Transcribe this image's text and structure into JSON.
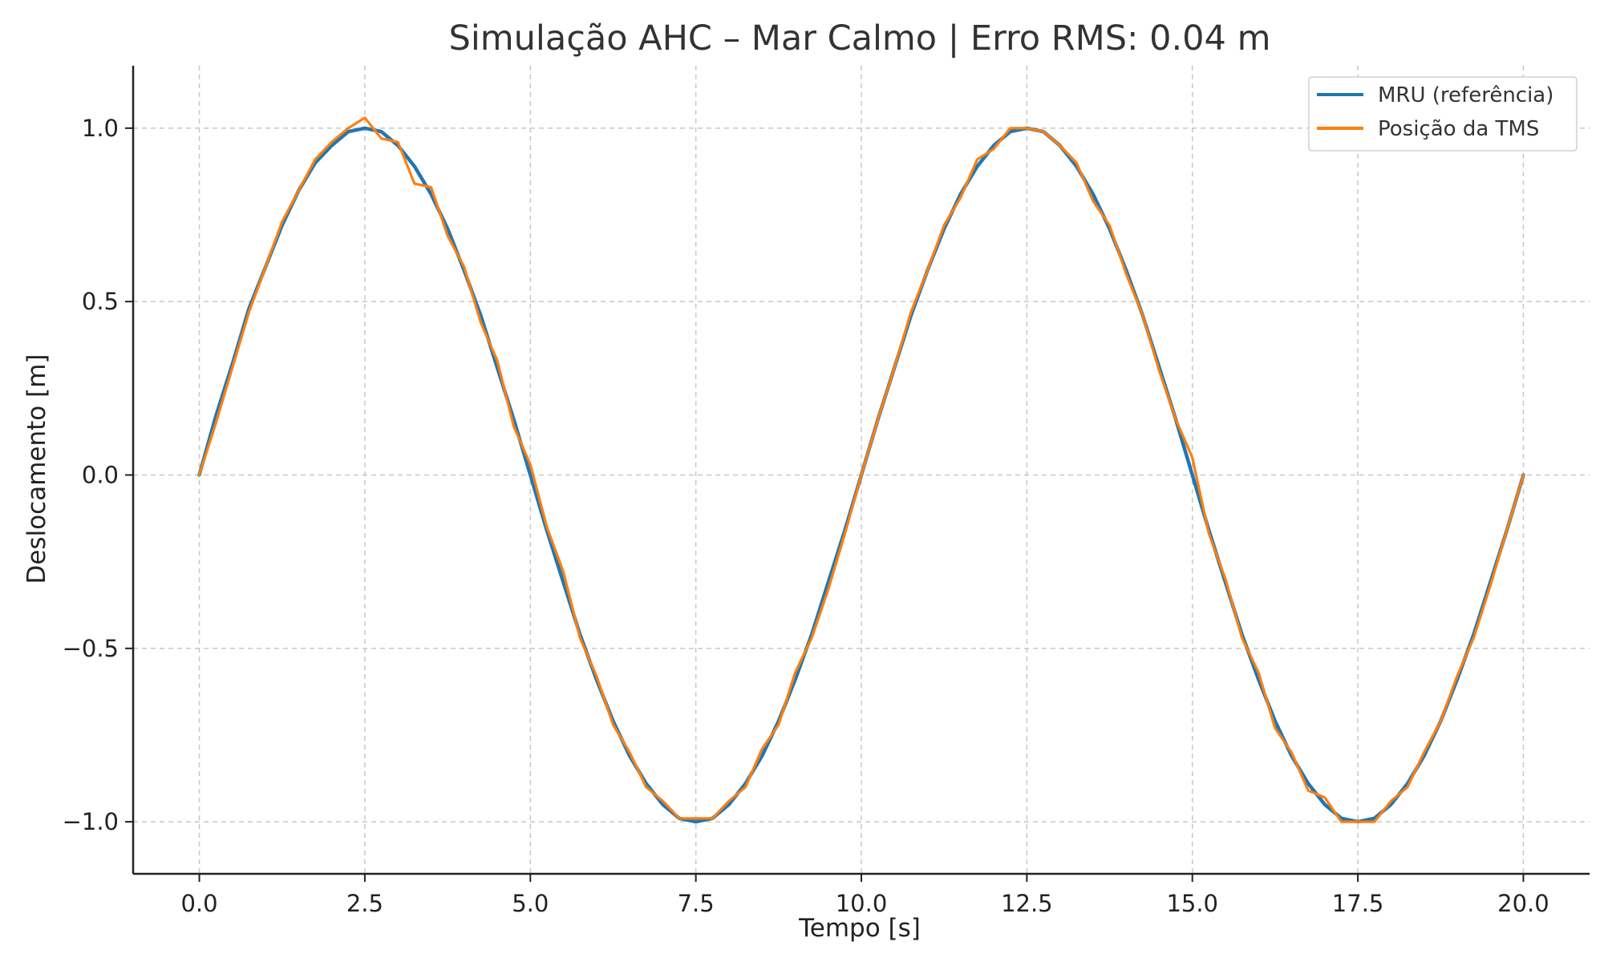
{
  "chart_data": {
    "type": "line",
    "title": "Simulação AHC – Mar Calmo | Erro RMS: 0.04 m",
    "xlabel": "Tempo [s]",
    "ylabel": "Deslocamento [m]",
    "xlim": [
      -1,
      21
    ],
    "ylim": [
      -1.15,
      1.18
    ],
    "x_ticks": [
      0,
      2.5,
      5,
      7.5,
      10,
      12.5,
      15,
      17.5,
      20
    ],
    "x_tick_labels": [
      "0.0",
      "2.5",
      "5.0",
      "7.5",
      "10.0",
      "12.5",
      "15.0",
      "17.5",
      "20.0"
    ],
    "y_ticks": [
      -1.0,
      -0.5,
      0.0,
      0.5,
      1.0
    ],
    "y_tick_labels": [
      "−1.0",
      "−0.5",
      "0.0",
      "0.5",
      "1.0"
    ],
    "grid": true,
    "legend_position": "top-right",
    "series": [
      {
        "name": "MRU (referência)",
        "color": "#1f77b4",
        "x": [
          0,
          0.25,
          0.5,
          0.75,
          1,
          1.25,
          1.5,
          1.75,
          2,
          2.25,
          2.5,
          2.75,
          3,
          3.25,
          3.5,
          3.75,
          4,
          4.25,
          4.5,
          4.75,
          5,
          5.25,
          5.5,
          5.75,
          6,
          6.25,
          6.5,
          6.75,
          7,
          7.25,
          7.5,
          7.75,
          8,
          8.25,
          8.5,
          8.75,
          9,
          9.25,
          9.5,
          9.75,
          10,
          10.25,
          10.5,
          10.75,
          11,
          11.25,
          11.5,
          11.75,
          12,
          12.25,
          12.5,
          12.75,
          13,
          13.25,
          13.5,
          13.75,
          14,
          14.25,
          14.5,
          14.75,
          15,
          15.25,
          15.5,
          15.75,
          16,
          16.25,
          16.5,
          16.75,
          17,
          17.25,
          17.5,
          17.75,
          18,
          18.25,
          18.5,
          18.75,
          19,
          19.25,
          19.5,
          19.75,
          20
        ],
        "y": [
          0.0,
          0.17,
          0.32,
          0.48,
          0.6,
          0.72,
          0.82,
          0.9,
          0.95,
          0.99,
          1.0,
          0.99,
          0.95,
          0.89,
          0.81,
          0.71,
          0.59,
          0.46,
          0.31,
          0.16,
          0.0,
          -0.16,
          -0.31,
          -0.46,
          -0.59,
          -0.71,
          -0.81,
          -0.89,
          -0.95,
          -0.99,
          -1.0,
          -0.99,
          -0.95,
          -0.89,
          -0.81,
          -0.71,
          -0.59,
          -0.46,
          -0.31,
          -0.16,
          0.0,
          0.16,
          0.31,
          0.46,
          0.59,
          0.71,
          0.81,
          0.89,
          0.95,
          0.99,
          1.0,
          0.99,
          0.95,
          0.89,
          0.81,
          0.71,
          0.59,
          0.46,
          0.31,
          0.16,
          0.0,
          -0.16,
          -0.31,
          -0.46,
          -0.59,
          -0.71,
          -0.81,
          -0.89,
          -0.95,
          -0.99,
          -1.0,
          -0.99,
          -0.95,
          -0.89,
          -0.81,
          -0.71,
          -0.59,
          -0.46,
          -0.31,
          -0.16,
          0.0
        ]
      },
      {
        "name": "Posição da TMS",
        "color": "#ff7f0e",
        "x": [
          0,
          0.25,
          0.5,
          0.75,
          1,
          1.25,
          1.5,
          1.75,
          2,
          2.25,
          2.5,
          2.75,
          3,
          3.25,
          3.5,
          3.75,
          4,
          4.25,
          4.5,
          4.75,
          5,
          5.25,
          5.5,
          5.75,
          6,
          6.25,
          6.5,
          6.75,
          7,
          7.25,
          7.5,
          7.75,
          8,
          8.25,
          8.5,
          8.75,
          9,
          9.25,
          9.5,
          9.75,
          10,
          10.25,
          10.5,
          10.75,
          11,
          11.25,
          11.5,
          11.75,
          12,
          12.25,
          12.5,
          12.75,
          13,
          13.25,
          13.5,
          13.75,
          14,
          14.25,
          14.5,
          14.75,
          15,
          15.25,
          15.5,
          15.75,
          16,
          16.25,
          16.5,
          16.75,
          17,
          17.25,
          17.5,
          17.75,
          18,
          18.25,
          18.5,
          18.75,
          19,
          19.25,
          19.5,
          19.75,
          20
        ],
        "y": [
          0.0,
          0.15,
          0.31,
          0.47,
          0.6,
          0.73,
          0.82,
          0.91,
          0.96,
          1.0,
          1.03,
          0.97,
          0.96,
          0.84,
          0.83,
          0.69,
          0.6,
          0.44,
          0.33,
          0.14,
          0.03,
          -0.15,
          -0.28,
          -0.47,
          -0.58,
          -0.72,
          -0.8,
          -0.9,
          -0.94,
          -0.99,
          -0.99,
          -0.99,
          -0.94,
          -0.9,
          -0.79,
          -0.72,
          -0.57,
          -0.47,
          -0.33,
          -0.17,
          0.0,
          0.16,
          0.31,
          0.47,
          0.59,
          0.72,
          0.8,
          0.91,
          0.94,
          1.0,
          1.0,
          0.99,
          0.95,
          0.9,
          0.79,
          0.72,
          0.58,
          0.46,
          0.3,
          0.16,
          0.05,
          -0.17,
          -0.3,
          -0.47,
          -0.57,
          -0.73,
          -0.8,
          -0.91,
          -0.93,
          -1.0,
          -1.0,
          -1.0,
          -0.94,
          -0.9,
          -0.8,
          -0.71,
          -0.58,
          -0.47,
          -0.32,
          -0.16,
          0.0
        ]
      }
    ]
  }
}
